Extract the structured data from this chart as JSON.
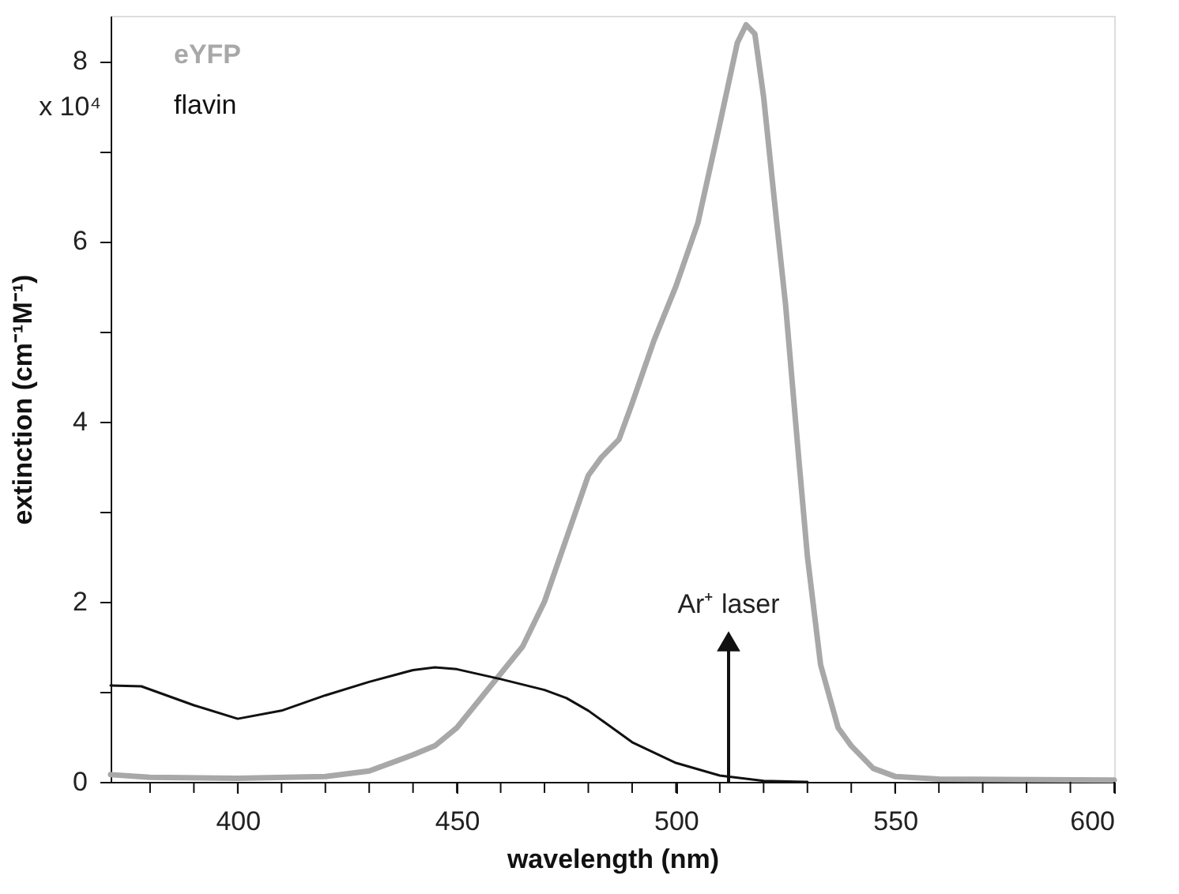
{
  "chart_data": {
    "type": "line",
    "xlabel": "wavelength (nm)",
    "ylabel": "extinction (cm⁻¹M⁻¹)",
    "xlim": [
      371,
      600
    ],
    "ylim": [
      0,
      8.5
    ],
    "xticks": [
      {
        "value": 380,
        "label": null
      },
      {
        "value": 390,
        "label": null
      },
      400,
      {
        "value": 410,
        "label": null
      },
      {
        "value": 420,
        "label": null
      },
      {
        "value": 430,
        "label": null
      },
      {
        "value": 440,
        "label": null
      },
      450,
      {
        "value": 460,
        "label": null
      },
      {
        "value": 470,
        "label": null
      },
      {
        "value": 480,
        "label": null
      },
      {
        "value": 490,
        "label": null
      },
      500,
      {
        "value": 510,
        "label": null
      },
      {
        "value": 520,
        "label": null
      },
      {
        "value": 530,
        "label": null
      },
      {
        "value": 540,
        "label": null
      },
      550,
      {
        "value": 560,
        "label": null
      },
      {
        "value": 570,
        "label": null
      },
      {
        "value": 580,
        "label": null
      },
      {
        "value": 590,
        "label": null
      },
      600
    ],
    "yticks": [
      0,
      {
        "value": 1,
        "label": null
      },
      2,
      {
        "value": 3,
        "label": null
      },
      4,
      {
        "value": 5,
        "label": null
      },
      6,
      {
        "value": 7,
        "label": null
      },
      8
    ],
    "grid": false,
    "legend": "top left",
    "marker": "none",
    "line_style": "solid",
    "series": [
      {
        "name": "eYFP",
        "color": "#a8a8a8",
        "x": [
          371,
          380,
          400,
          420,
          430,
          440,
          445,
          450,
          455,
          460,
          465,
          470,
          475,
          480,
          483,
          487,
          490,
          495,
          500,
          505,
          510,
          514,
          516,
          518,
          520,
          523,
          525,
          528,
          530,
          533,
          537,
          540,
          545,
          550,
          560,
          600
        ],
        "values": [
          0.08,
          0.05,
          0.04,
          0.06,
          0.12,
          0.3,
          0.4,
          0.6,
          0.9,
          1.2,
          1.5,
          2.0,
          2.7,
          3.4,
          3.6,
          3.8,
          4.2,
          4.9,
          5.5,
          6.2,
          7.3,
          8.2,
          8.4,
          8.3,
          7.6,
          6.2,
          5.3,
          3.6,
          2.5,
          1.3,
          0.6,
          0.4,
          0.15,
          0.06,
          0.03,
          0.02
        ]
      },
      {
        "name": "flavin",
        "color": "#111111",
        "x": [
          371,
          378,
          390,
          400,
          410,
          420,
          430,
          440,
          445,
          450,
          460,
          470,
          475,
          480,
          490,
          500,
          510,
          520,
          530
        ],
        "values": [
          1.07,
          1.06,
          0.85,
          0.7,
          0.79,
          0.96,
          1.11,
          1.24,
          1.27,
          1.25,
          1.14,
          1.02,
          0.93,
          0.79,
          0.44,
          0.21,
          0.07,
          0.01,
          0.0
        ]
      }
    ],
    "annotations": [
      "x 10⁴",
      "Ar⁺ laser"
    ]
  }
}
